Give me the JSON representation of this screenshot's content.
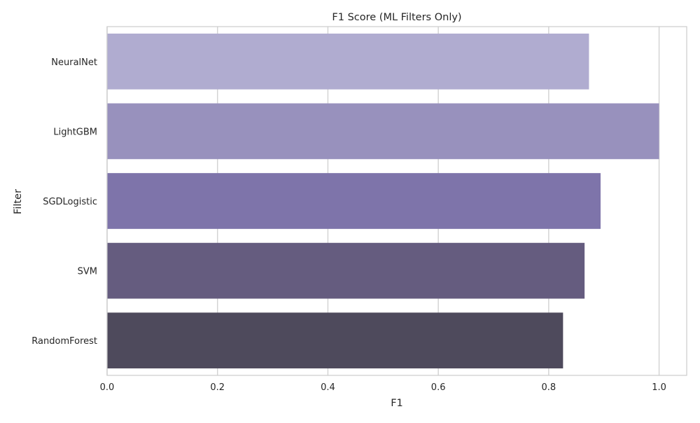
{
  "chart_data": {
    "type": "bar",
    "orientation": "horizontal",
    "title": "F1 Score (ML Filters Only)",
    "xlabel": "F1",
    "ylabel": "Filter",
    "categories": [
      "NeuralNet",
      "LightGBM",
      "SGDLogistic",
      "SVM",
      "RandomForest"
    ],
    "values": [
      0.873,
      1.0,
      0.894,
      0.865,
      0.826
    ],
    "bar_colors": [
      "#b0acd0",
      "#9891bd",
      "#7e74aa",
      "#655c7f",
      "#4e4a5c"
    ],
    "xlim": [
      0,
      1.05
    ],
    "xticks": [
      0.0,
      0.2,
      0.4,
      0.6,
      0.8,
      1.0
    ],
    "xtick_labels": [
      "0.0",
      "0.2",
      "0.4",
      "0.6",
      "0.8",
      "1.0"
    ],
    "grid": true,
    "grid_axis": "x"
  }
}
